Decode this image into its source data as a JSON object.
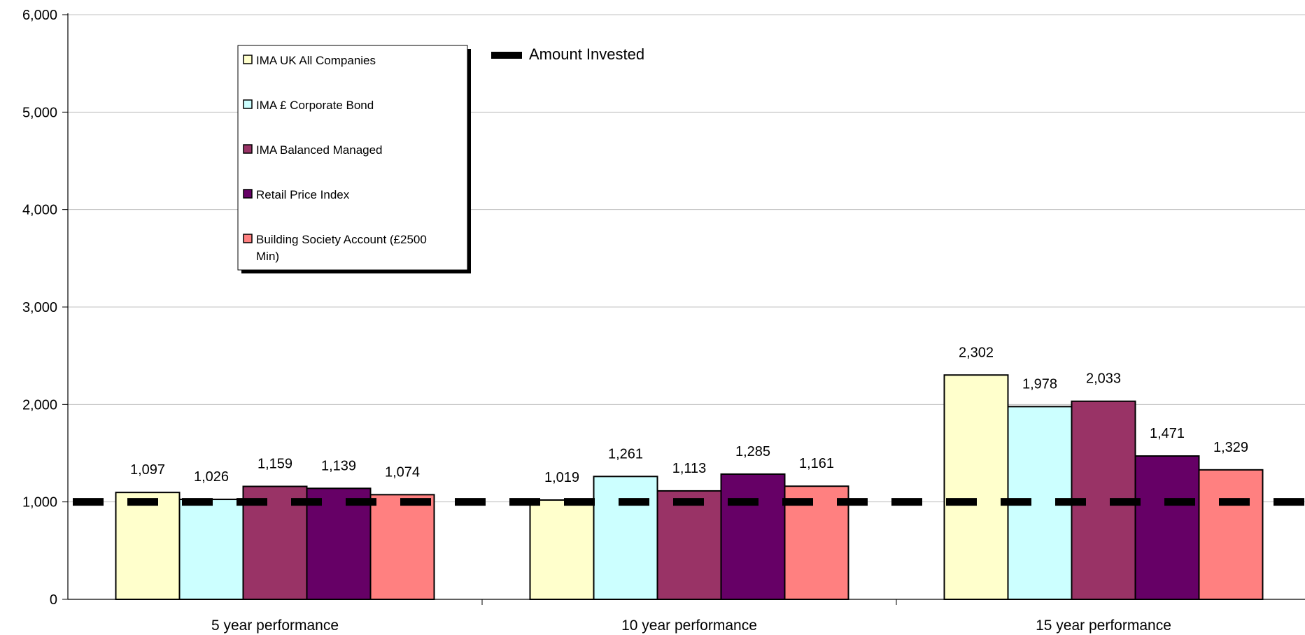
{
  "chart_data": {
    "type": "bar",
    "categories": [
      "5 year performance",
      "10 year performance",
      "15 year performance"
    ],
    "series": [
      {
        "name": "IMA UK All Companies",
        "color": "#FFFFCC",
        "values": [
          1097,
          1019,
          2302
        ]
      },
      {
        "name": "IMA £ Corporate Bond",
        "color": "#CCFFFF",
        "values": [
          1026,
          1261,
          1978
        ]
      },
      {
        "name": "IMA Balanced Managed",
        "color": "#993366",
        "values": [
          1159,
          1113,
          2033
        ]
      },
      {
        "name": "Retail Price Index",
        "color": "#660066",
        "values": [
          1139,
          1285,
          1471
        ]
      },
      {
        "name": "Building Society Account (£2500 Min)",
        "color": "#FF8080",
        "values": [
          1074,
          1161,
          1329
        ]
      }
    ],
    "data_labels": [
      [
        "1,097",
        "1,019",
        "2,302"
      ],
      [
        "1,026",
        "1,261",
        "1,978"
      ],
      [
        "1,159",
        "1,113",
        "2,033"
      ],
      [
        "1,139",
        "1,285",
        "1,471"
      ],
      [
        "1,074",
        "1,161",
        "1,329"
      ]
    ],
    "reference_line": {
      "name": "Amount Invested",
      "value": 1000,
      "style": "dashed",
      "color": "#000000"
    },
    "yticks": [
      0,
      1000,
      2000,
      3000,
      4000,
      5000,
      6000
    ],
    "ytick_labels": [
      "0",
      "1,000",
      "2,000",
      "3,000",
      "4,000",
      "5,000",
      "6,000"
    ],
    "ylim": [
      0,
      6000
    ],
    "grid": true,
    "legend_position": "top-left",
    "title": "",
    "xlabel": "",
    "ylabel": ""
  }
}
